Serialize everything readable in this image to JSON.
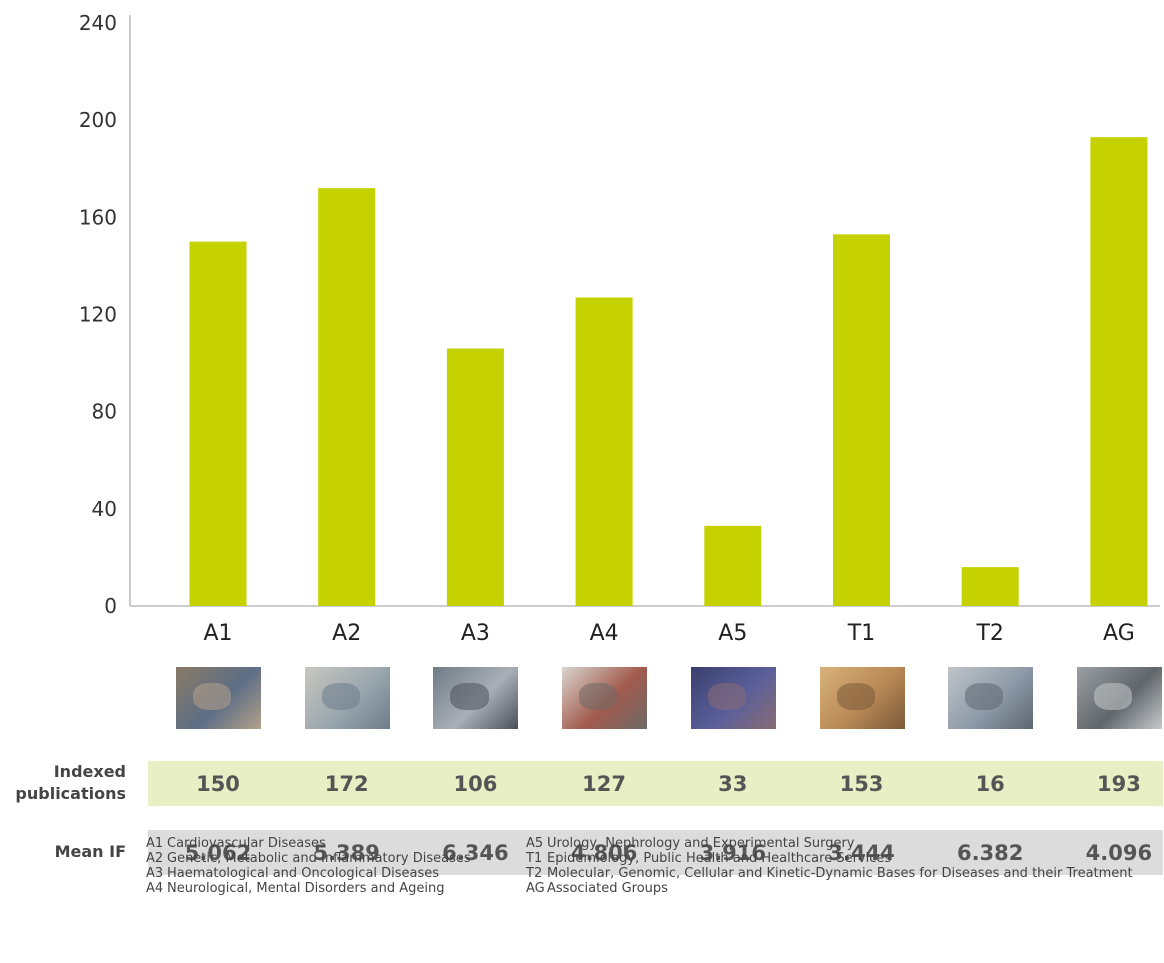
{
  "chart_data": {
    "type": "bar",
    "categories": [
      "A1",
      "A2",
      "A3",
      "A4",
      "A5",
      "T1",
      "T2",
      "AG"
    ],
    "values": [
      150,
      172,
      106,
      127,
      33,
      153,
      16,
      193
    ],
    "ylim": [
      0,
      240
    ],
    "yticks": [
      "0",
      "40",
      "80",
      "120",
      "160",
      "200",
      "240"
    ],
    "bar_color": "#c5d200",
    "grid": false
  },
  "photos": [
    {
      "name": "lab-pipette-photo",
      "colors": [
        "#8a7a66",
        "#5d6e86",
        "#b4a08a"
      ]
    },
    {
      "name": "pipette-hand-photo",
      "colors": [
        "#c8c8c0",
        "#9aa6ae",
        "#6e7c8a"
      ]
    },
    {
      "name": "lab-equipment-photo",
      "colors": [
        "#6f7b86",
        "#a9afb6",
        "#4a5058"
      ]
    },
    {
      "name": "brain-scan-monitor-photo",
      "colors": [
        "#d9d6cf",
        "#a35b4e",
        "#6d6a66"
      ]
    },
    {
      "name": "surgery-team-photo",
      "colors": [
        "#3a3f6e",
        "#5a5f9a",
        "#8a6c74"
      ]
    },
    {
      "name": "documents-reading-photo",
      "colors": [
        "#d8b27a",
        "#b88855",
        "#7a5a3a"
      ]
    },
    {
      "name": "glove-microscope-photo",
      "colors": [
        "#bfc4c8",
        "#8e9aa8",
        "#5c6670"
      ]
    },
    {
      "name": "sample-rack-photo",
      "colors": [
        "#9aa0a4",
        "#60666a",
        "#c6cacc"
      ]
    }
  ],
  "table": {
    "indexed_label": "Indexed publications",
    "indexed_values": [
      "150",
      "172",
      "106",
      "127",
      "33",
      "153",
      "16",
      "193"
    ],
    "if_label": "Mean IF",
    "if_values": [
      "5.062",
      "5.389",
      "6.346",
      "4.806",
      "3.916",
      "3.444",
      "6.382",
      "4.096"
    ]
  },
  "legend": {
    "left": [
      {
        "code": "A1",
        "text": "Cardiovascular Diseases"
      },
      {
        "code": "A2",
        "text": "Genetic, Metabolic and Inflammatory Diseases"
      },
      {
        "code": "A3",
        "text": "Haematological and Oncological Diseases"
      },
      {
        "code": "A4",
        "text": "Neurological, Mental Disorders and Ageing"
      }
    ],
    "right": [
      {
        "code": "A5",
        "text": "Urology, Nephrology and Experimental Surgery"
      },
      {
        "code": "T1",
        "text": "Epidemiology, Public Health and Healthcare Services"
      },
      {
        "code": "T2",
        "text": "Molecular, Genomic, Cellular and Kinetic-Dynamic Bases for Diseases and their Treatment"
      },
      {
        "code": "AG",
        "text": "Associated Groups"
      }
    ]
  }
}
